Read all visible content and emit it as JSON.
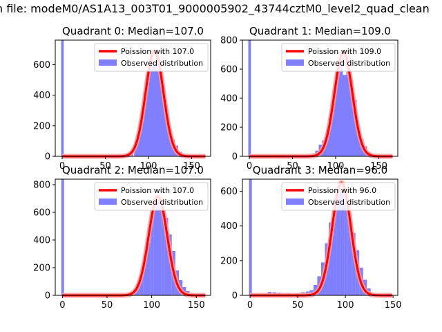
{
  "page_title": "n file: modeM0/AS1A13_003T01_9000005902_43744cztM0_level2_quad_clean",
  "colors": {
    "hist": "#7f7fff",
    "model": "#ff0000",
    "model_glow": "#ff9999"
  },
  "chart_data": [
    {
      "type": "bar",
      "title": "Quadrant 0: Median=107.0",
      "xlim": [
        -8,
        172
      ],
      "ylim": [
        0,
        760
      ],
      "xticks": [
        "0",
        "50",
        "100",
        "150"
      ],
      "yticks": [
        "0",
        "200",
        "400",
        "600"
      ],
      "legend": {
        "placement": "top-right",
        "entries": [
          "Poission with 107.0",
          "Observed distribution"
        ]
      },
      "series": [
        {
          "name": "Poission with 107.0",
          "kind": "line",
          "mean": 107.0,
          "peak": 690
        },
        {
          "name": "Observed distribution",
          "kind": "hist",
          "x": [
            0,
            70,
            75,
            80,
            85,
            88,
            92,
            96,
            100,
            104,
            108,
            112,
            116,
            120,
            124,
            128,
            132,
            136,
            140,
            145,
            150
          ],
          "values": [
            760,
            5,
            15,
            30,
            60,
            140,
            230,
            400,
            560,
            630,
            620,
            580,
            460,
            330,
            180,
            110,
            70,
            30,
            15,
            8,
            3
          ]
        }
      ]
    },
    {
      "type": "bar",
      "title": "Quadrant 1: Median=109.0",
      "xlim": [
        -8,
        172
      ],
      "ylim": [
        0,
        800
      ],
      "xticks": [
        "0",
        "50",
        "100",
        "150"
      ],
      "yticks": [
        "0",
        "200",
        "400",
        "600",
        "800"
      ],
      "legend": {
        "placement": "top-right",
        "entries": [
          "Poission with 109.0",
          "Observed distribution"
        ]
      },
      "series": [
        {
          "name": "Poission with 109.0",
          "kind": "line",
          "mean": 109.0,
          "peak": 715
        },
        {
          "name": "Observed distribution",
          "kind": "hist",
          "x": [
            0,
            30,
            70,
            74,
            78,
            82,
            86,
            90,
            94,
            98,
            102,
            106,
            110,
            114,
            118,
            122,
            126,
            130,
            134,
            138,
            142,
            146,
            150
          ],
          "values": [
            800,
            8,
            5,
            20,
            40,
            80,
            110,
            160,
            300,
            440,
            580,
            700,
            560,
            700,
            520,
            390,
            200,
            120,
            70,
            30,
            20,
            10,
            5
          ]
        }
      ]
    },
    {
      "type": "bar",
      "title": "Quadrant 2: Median=107.0",
      "xlim": [
        -8,
        166
      ],
      "ylim": [
        0,
        840
      ],
      "xticks": [
        "0",
        "50",
        "100",
        "150"
      ],
      "yticks": [
        "0",
        "200",
        "400",
        "600",
        "800"
      ],
      "legend": {
        "placement": "top-right",
        "entries": [
          "Poission with 107.0",
          "Observed distribution"
        ]
      },
      "series": [
        {
          "name": "Poission with 107.0",
          "kind": "line",
          "mean": 107.0,
          "peak": 715
        },
        {
          "name": "Observed distribution",
          "kind": "hist",
          "x": [
            0,
            70,
            75,
            80,
            84,
            88,
            92,
            96,
            100,
            104,
            108,
            112,
            116,
            120,
            124,
            128,
            132,
            136,
            140,
            145,
            150
          ],
          "values": [
            840,
            10,
            20,
            40,
            80,
            140,
            250,
            380,
            560,
            660,
            700,
            640,
            560,
            440,
            320,
            180,
            110,
            60,
            30,
            15,
            5
          ]
        }
      ]
    },
    {
      "type": "bar",
      "title": "Quadrant 3: Median=96.0",
      "xlim": [
        -8,
        155
      ],
      "ylim": [
        0,
        670
      ],
      "xticks": [
        "0",
        "50",
        "100",
        "150"
      ],
      "yticks": [
        "0",
        "200",
        "400",
        "600"
      ],
      "legend": {
        "placement": "top-right",
        "entries": [
          "Poission with 96.0",
          "Observed distribution"
        ]
      },
      "series": [
        {
          "name": "Poission with 96.0",
          "kind": "line",
          "mean": 96.0,
          "peak": 650
        },
        {
          "name": "Observed distribution",
          "kind": "hist",
          "x": [
            0,
            20,
            25,
            30,
            40,
            50,
            55,
            60,
            64,
            68,
            72,
            76,
            80,
            84,
            88,
            92,
            96,
            100,
            104,
            108,
            112,
            116,
            120,
            124,
            128
          ],
          "values": [
            670,
            20,
            18,
            15,
            12,
            14,
            18,
            22,
            30,
            60,
            110,
            190,
            300,
            420,
            560,
            620,
            600,
            560,
            470,
            360,
            260,
            160,
            90,
            40,
            15
          ]
        }
      ]
    }
  ]
}
